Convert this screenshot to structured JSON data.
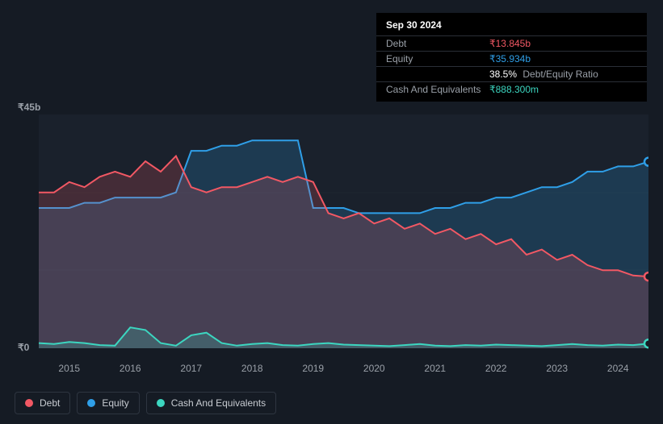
{
  "tooltip": {
    "date": "Sep 30 2024",
    "debt_label": "Debt",
    "debt_value": "₹13.845b",
    "debt_color": "#f25864",
    "equity_label": "Equity",
    "equity_value": "₹35.934b",
    "equity_color": "#2f9fe8",
    "ratio_value": "38.5%",
    "ratio_label": "Debt/Equity Ratio",
    "cash_label": "Cash And Equivalents",
    "cash_value": "₹888.300m",
    "cash_color": "#3cd6c0"
  },
  "chart": {
    "type": "area",
    "background_color": "#151b24",
    "plot_bg": "#1a212c",
    "gridline_color": "#1f2630",
    "ylim": [
      0,
      45
    ],
    "ylabel_top": "₹45b",
    "ylabel_bottom": "₹0",
    "ylabel_color": "#9aa0a8",
    "years": [
      "2015",
      "2016",
      "2017",
      "2018",
      "2019",
      "2020",
      "2021",
      "2022",
      "2023",
      "2024"
    ],
    "series": {
      "cash": {
        "label": "Cash And Equivalents",
        "stroke": "#3cd6c0",
        "fill": "rgba(60,214,192,0.20)",
        "stroke_width": 2,
        "values": [
          1.0,
          0.8,
          1.2,
          1.0,
          0.6,
          0.5,
          4.0,
          3.5,
          1.0,
          0.5,
          2.5,
          3.0,
          1.0,
          0.5,
          0.8,
          1.0,
          0.6,
          0.5,
          0.8,
          1.0,
          0.7,
          0.6,
          0.5,
          0.4,
          0.6,
          0.8,
          0.5,
          0.4,
          0.6,
          0.5,
          0.7,
          0.6,
          0.5,
          0.4,
          0.6,
          0.8,
          0.6,
          0.5,
          0.7,
          0.6,
          0.9
        ]
      },
      "debt": {
        "label": "Debt",
        "stroke": "#f25864",
        "fill": "rgba(242,88,100,0.20)",
        "stroke_width": 2,
        "values": [
          30,
          30,
          32,
          31,
          33,
          34,
          33,
          36,
          34,
          37,
          31,
          30,
          31,
          31,
          32,
          33,
          32,
          33,
          32,
          26,
          25,
          26,
          24,
          25,
          23,
          24,
          22,
          23,
          21,
          22,
          20,
          21,
          18,
          19,
          17,
          18,
          16,
          15,
          15,
          14,
          13.8
        ]
      },
      "equity": {
        "label": "Equity",
        "stroke": "#2f9fe8",
        "fill": "rgba(47,159,232,0.20)",
        "stroke_width": 2,
        "values": [
          27,
          27,
          27,
          28,
          28,
          29,
          29,
          29,
          29,
          30,
          38,
          38,
          39,
          39,
          40,
          40,
          40,
          40,
          27,
          27,
          27,
          26,
          26,
          26,
          26,
          26,
          27,
          27,
          28,
          28,
          29,
          29,
          30,
          31,
          31,
          32,
          34,
          34,
          35,
          35,
          35.9
        ]
      }
    },
    "marker": {
      "x_index": 40,
      "debt_color": "#f25864",
      "equity_color": "#2f9fe8",
      "cash_color": "#3cd6c0"
    }
  },
  "legend": {
    "debt": "Debt",
    "equity": "Equity",
    "cash": "Cash And Equivalents",
    "debt_color": "#f25864",
    "equity_color": "#2f9fe8",
    "cash_color": "#3cd6c0"
  }
}
